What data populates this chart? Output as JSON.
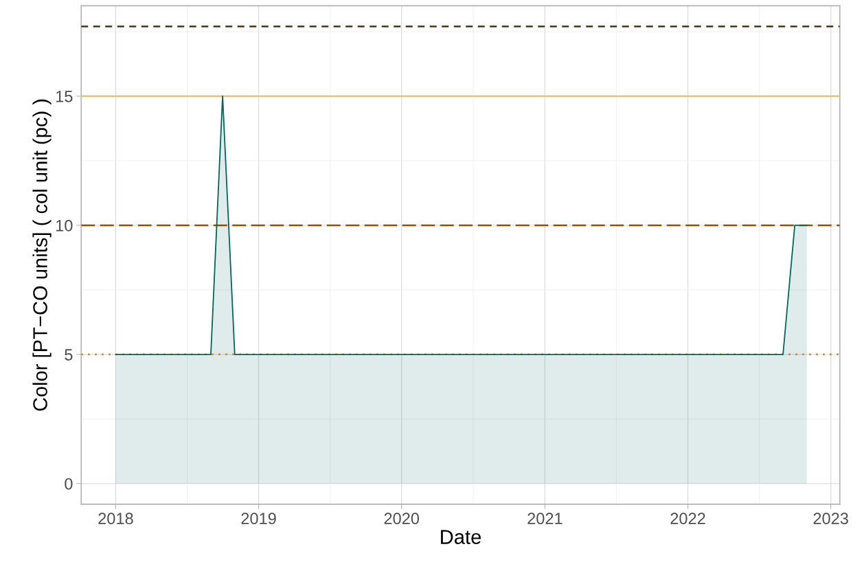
{
  "chart_data": {
    "type": "area",
    "xlabel": "Date",
    "ylabel": "Color [PT−CO units] ( col unit (pc) )",
    "x": [
      "2018-01-01",
      "2018-09-01",
      "2018-10-01",
      "2018-11-01",
      "2022-09-01",
      "2022-10-01",
      "2022-11-01"
    ],
    "series": [
      {
        "color": "#01665e",
        "values": [
          5,
          5,
          15,
          5,
          5,
          10,
          10
        ]
      }
    ],
    "xlim": [
      "2017-10-05",
      "2023-01-24"
    ],
    "xticks": [
      {
        "value": "2018-01-01",
        "label": "2018"
      },
      {
        "value": "2019-01-01",
        "label": "2019"
      },
      {
        "value": "2020-01-01",
        "label": "2020"
      },
      {
        "value": "2021-01-01",
        "label": "2021"
      },
      {
        "value": "2022-01-01",
        "label": "2022"
      },
      {
        "value": "2023-01-01",
        "label": "2023"
      }
    ],
    "ylim": [
      -0.8,
      18.5
    ],
    "yticks": [
      0,
      5,
      10,
      15
    ],
    "ref_lines": [
      {
        "axis": "y",
        "value": 17.7,
        "color": "#543005",
        "line_style": "dashed"
      },
      {
        "axis": "y",
        "value": 15,
        "color": "#dfc27d",
        "line_style": "solid"
      },
      {
        "axis": "y",
        "value": 10,
        "color": "#8c510a",
        "line_style": "longdash"
      },
      {
        "axis": "y",
        "value": 5,
        "color": "#bf812d",
        "line_style": "dotted"
      }
    ],
    "grid": true
  }
}
